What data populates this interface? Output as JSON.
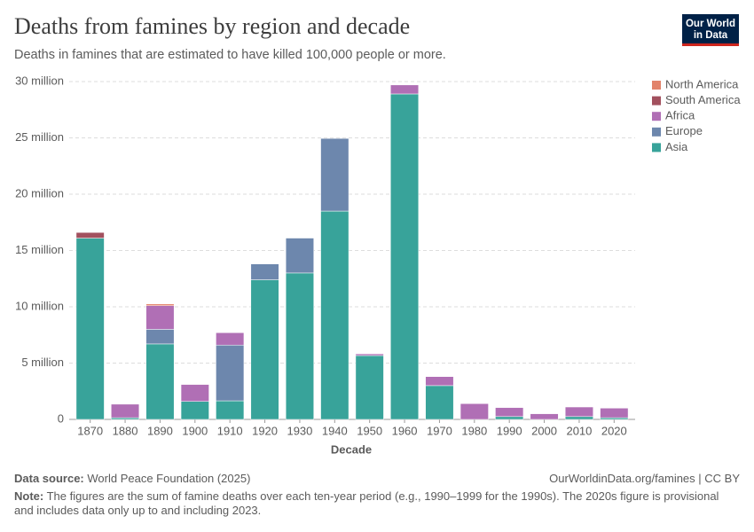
{
  "chart_data": {
    "type": "stacked-bar",
    "title": "Deaths from famines by region and decade",
    "subtitle": "Deaths in famines that are estimated to have killed 100,000 people or more.",
    "x_label": "Decade",
    "categories": [
      "1870",
      "1880",
      "1890",
      "1900",
      "1910",
      "1920",
      "1930",
      "1940",
      "1950",
      "1960",
      "1970",
      "1980",
      "1990",
      "2000",
      "2010",
      "2020"
    ],
    "series": [
      {
        "name": "North America",
        "color": "#e2836a",
        "values": [
          0,
          0,
          150000,
          0,
          0,
          0,
          0,
          0,
          0,
          0,
          0,
          0,
          0,
          0,
          0,
          0
        ]
      },
      {
        "name": "South America",
        "color": "#a2505e",
        "values": [
          500000,
          0,
          0,
          0,
          0,
          0,
          0,
          0,
          0,
          0,
          0,
          0,
          0,
          0,
          0,
          0
        ]
      },
      {
        "name": "Africa",
        "color": "#b06fb5",
        "values": [
          0,
          1200000,
          2100000,
          1500000,
          1100000,
          0,
          0,
          0,
          150000,
          800000,
          800000,
          1400000,
          800000,
          500000,
          850000,
          850000
        ]
      },
      {
        "name": "Europe",
        "color": "#6d87ad",
        "values": [
          0,
          0,
          1300000,
          0,
          4950000,
          1400000,
          3100000,
          6450000,
          0,
          0,
          0,
          0,
          0,
          0,
          0,
          0
        ]
      },
      {
        "name": "Asia",
        "color": "#38a39a",
        "values": [
          16100000,
          150000,
          6700000,
          1600000,
          1650000,
          12400000,
          13000000,
          18500000,
          5670000,
          28900000,
          3000000,
          0,
          250000,
          0,
          250000,
          150000
        ]
      }
    ],
    "ylim": [
      0,
      30000000
    ],
    "yticks": [
      {
        "value": 0,
        "label": "0"
      },
      {
        "value": 5000000,
        "label": "5 million"
      },
      {
        "value": 10000000,
        "label": "10 million"
      },
      {
        "value": 15000000,
        "label": "15 million"
      },
      {
        "value": 20000000,
        "label": "20 million"
      },
      {
        "value": 25000000,
        "label": "25 million"
      },
      {
        "value": 30000000,
        "label": "30 million"
      }
    ],
    "grid": true,
    "legend": "right"
  },
  "footer": {
    "source_label": "Data source:",
    "source": "World Peace Foundation (2025)",
    "link": "OurWorldinData.org/famines | CC BY",
    "note_label": "Note:",
    "note": "The figures are the sum of famine deaths over each ten-year period (e.g., 1990–1999 for the 1990s). The 2020s figure is provisional and includes data only up to and including 2023."
  },
  "logo": [
    "Our World",
    "in Data"
  ]
}
